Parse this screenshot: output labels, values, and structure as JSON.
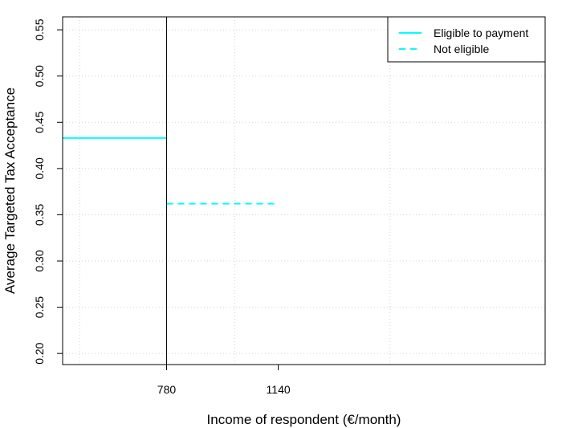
{
  "chart_data": {
    "type": "line",
    "xlabel": "Income of respondent (€/month)",
    "ylabel": "Average Targeted Tax Acceptance",
    "xlim": [
      445,
      2000
    ],
    "ylim": [
      0.188,
      0.564
    ],
    "x_ticks": [
      780,
      1140
    ],
    "x_tick_labels": [
      "780",
      "1140"
    ],
    "y_ticks": [
      0.2,
      0.25,
      0.3,
      0.35,
      0.4,
      0.45,
      0.5,
      0.55
    ],
    "y_tick_labels": [
      "0.20",
      "0.25",
      "0.30",
      "0.35",
      "0.40",
      "0.45",
      "0.50",
      "0.55"
    ],
    "x_grid": [
      500,
      780,
      1000,
      1500,
      2000
    ],
    "grid": true,
    "cutoff_line": 780,
    "legend_position": "top-right",
    "series": [
      {
        "name": "Eligible to payment",
        "style": "solid",
        "color": "#00FFFF",
        "x": [
          445,
          780
        ],
        "y": [
          0.433,
          0.433
        ]
      },
      {
        "name": "Not eligible",
        "style": "dashed",
        "color": "#00FFFF",
        "x": [
          780,
          1140
        ],
        "y": [
          0.362,
          0.362
        ]
      }
    ]
  }
}
